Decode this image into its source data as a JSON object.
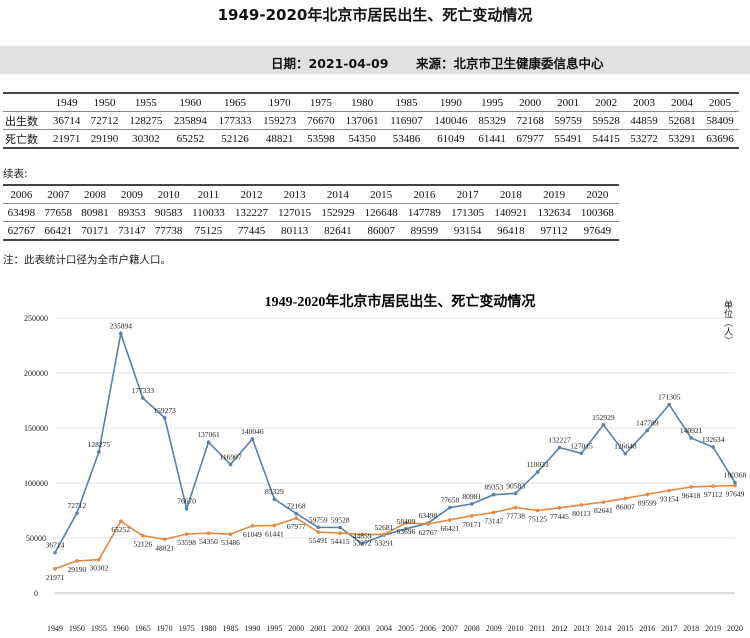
{
  "header": {
    "title": "1949-2020年北京市居民出生、死亡变动情况",
    "date": "日期：2021-04-09",
    "source": "来源：北京市卫生健康委信息中心"
  },
  "table1": {
    "years": [
      "1949",
      "1950",
      "1955",
      "1960",
      "1965",
      "1970",
      "1975",
      "1980",
      "1985",
      "1990",
      "1995",
      "2000",
      "2001",
      "2002",
      "2003",
      "2004",
      "2005"
    ],
    "births_label": "出生数",
    "deaths_label": "死亡数",
    "births": [
      "36714",
      "72712",
      "128275",
      "235894",
      "177333",
      "159273",
      "76670",
      "137061",
      "116907",
      "140046",
      "85329",
      "72168",
      "59759",
      "59528",
      "44859",
      "52681",
      "58409"
    ],
    "deaths": [
      "21971",
      "29190",
      "30302",
      "65252",
      "52126",
      "48821",
      "53598",
      "54350",
      "53486",
      "61049",
      "61441",
      "67977",
      "55491",
      "54415",
      "53272",
      "53291",
      "63696"
    ]
  },
  "continued_label": "续表:",
  "table2": {
    "years": [
      "2006",
      "2007",
      "2008",
      "2009",
      "2010",
      "2011",
      "2012",
      "2013",
      "2014",
      "2015",
      "2016",
      "2017",
      "2018",
      "2019",
      "2020"
    ],
    "births": [
      "63498",
      "77658",
      "80981",
      "89353",
      "90583",
      "110033",
      "132227",
      "127015",
      "152929",
      "126648",
      "147789",
      "171305",
      "140921",
      "132634",
      "100368"
    ],
    "deaths": [
      "62767",
      "66421",
      "70171",
      "73147",
      "77738",
      "75125",
      "77445",
      "80113",
      "82641",
      "86007",
      "89599",
      "93154",
      "96418",
      "97112",
      "97649"
    ]
  },
  "note": "注：此表统计口径为全市户籍人口。",
  "chart_data": {
    "type": "line",
    "title": "1949-2020年北京市居民出生、死亡变动情况",
    "unit_label": "单位（人）",
    "categories": [
      "1949",
      "1950",
      "1955",
      "1960",
      "1965",
      "1970",
      "1975",
      "1980",
      "1985",
      "1990",
      "1995",
      "2000",
      "2001",
      "2002",
      "2003",
      "2004",
      "2005",
      "2006",
      "2007",
      "2008",
      "2009",
      "2010",
      "2011",
      "2012",
      "2013",
      "2014",
      "2015",
      "2016",
      "2017",
      "2018",
      "2019",
      "2020"
    ],
    "ylim": [
      0,
      250000
    ],
    "yticks": [
      "0",
      "50000",
      "100000",
      "150000",
      "200000",
      "250000"
    ],
    "grid": true,
    "series": [
      {
        "key": "births",
        "color": "#5b7fa6",
        "values": [
          36714,
          72712,
          128275,
          235894,
          177333,
          159273,
          76670,
          137061,
          116907,
          140046,
          85329,
          72168,
          59759,
          59528,
          44859,
          52681,
          58409,
          63498,
          77658,
          80981,
          89353,
          90583,
          110033,
          132227,
          127015,
          152929,
          126648,
          147789,
          171305,
          140921,
          132634,
          100368
        ]
      },
      {
        "key": "deaths",
        "color": "#e08a43",
        "values": [
          21971,
          29190,
          30302,
          65252,
          52126,
          48821,
          53598,
          54350,
          53486,
          61049,
          61441,
          67977,
          55491,
          54415,
          53272,
          53291,
          63696,
          62767,
          66421,
          70171,
          73147,
          77738,
          75125,
          77445,
          80113,
          82641,
          86007,
          89599,
          93154,
          96418,
          97112,
          97649
        ]
      }
    ]
  }
}
